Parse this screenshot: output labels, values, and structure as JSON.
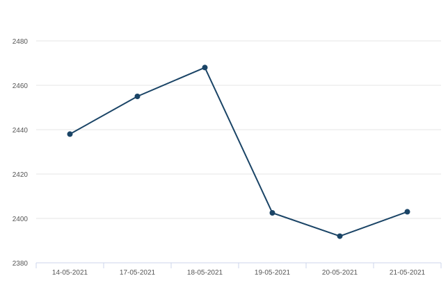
{
  "chart_data": {
    "type": "line",
    "title": "",
    "xlabel": "",
    "ylabel": "",
    "categories": [
      "14-05-2021",
      "17-05-2021",
      "18-05-2021",
      "19-05-2021",
      "20-05-2021",
      "21-05-2021"
    ],
    "series": [
      {
        "values": [
          2438,
          2455,
          2468,
          2402.5,
          2392,
          2403
        ]
      }
    ],
    "ylim": [
      2380,
      2480
    ],
    "yticks": [
      "2380",
      "2400",
      "2420",
      "2440",
      "2460",
      "2480"
    ],
    "grid": true,
    "legend": "none",
    "colors": {
      "line": "#1a4466",
      "marker": "#1a4466",
      "grid": "#e6e6e6",
      "axis": "#ccd6eb"
    }
  }
}
